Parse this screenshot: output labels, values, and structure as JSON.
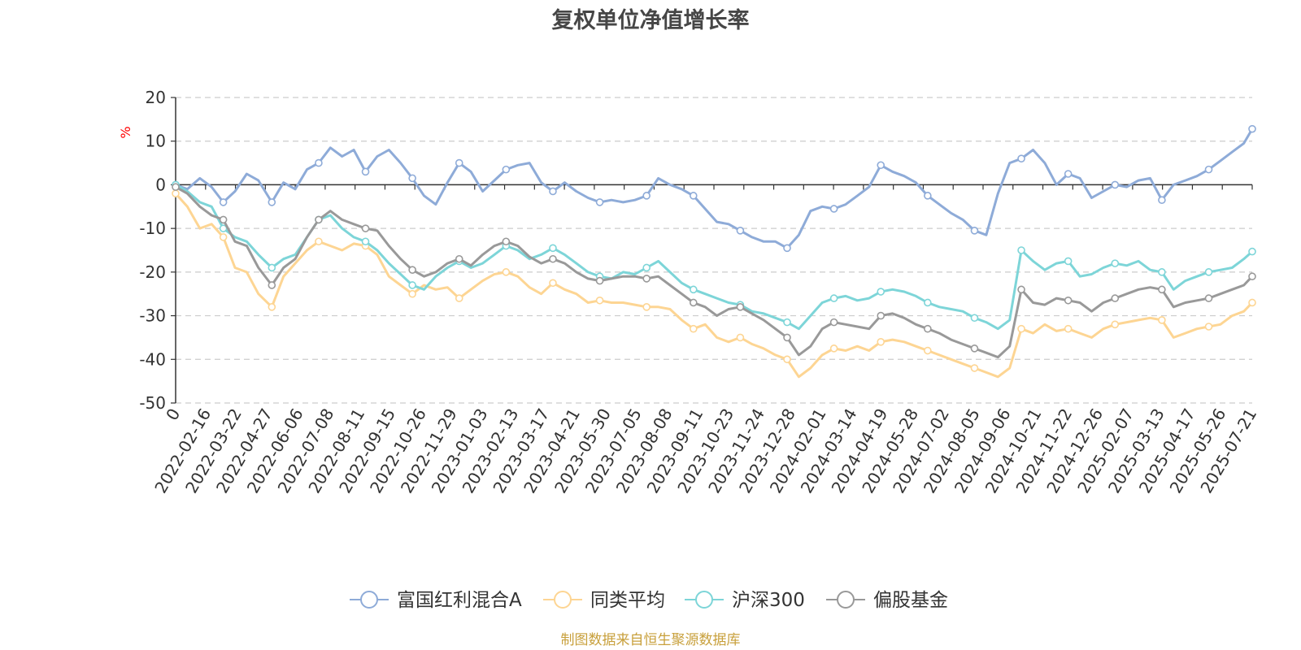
{
  "chart_data": {
    "type": "line",
    "title": "复权单位净值增长率",
    "ylabel": "%",
    "ylim": [
      -50,
      20
    ],
    "yticks": [
      20,
      10,
      0,
      -10,
      -20,
      -30,
      -40,
      -50
    ],
    "grid": true,
    "legend_position": "bottom-center",
    "source": "制图数据来自恒生聚源数据库",
    "x_start": "2022-01-11",
    "x_end": "2025-07-21",
    "x_ticks": [
      "0",
      "2022-02-16",
      "2022-03-22",
      "2022-04-27",
      "2022-06-06",
      "2022-07-08",
      "2022-08-11",
      "2022-09-15",
      "2022-10-26",
      "2022-11-29",
      "2023-01-03",
      "2023-02-13",
      "2023-03-17",
      "2023-04-21",
      "2023-05-30",
      "2023-07-05",
      "2023-08-08",
      "2023-09-11",
      "2023-10-23",
      "2023-11-24",
      "2023-12-28",
      "2024-02-01",
      "2024-03-14",
      "2024-04-19",
      "2024-05-28",
      "2024-07-02",
      "2024-08-05",
      "2024-09-06",
      "2024-10-21",
      "2024-11-22",
      "2024-12-26",
      "2025-02-07",
      "2025-03-13",
      "2025-04-17",
      "2025-05-26",
      "2025-07-21"
    ],
    "series": [
      {
        "name": "富国红利混合A",
        "color": "#8eabd8",
        "x": [
          "2022-01-11",
          "2022-01-25",
          "2022-02-09",
          "2022-02-23",
          "2022-03-09",
          "2022-03-23",
          "2022-04-06",
          "2022-04-20",
          "2022-05-06",
          "2022-05-20",
          "2022-06-03",
          "2022-06-17",
          "2022-07-01",
          "2022-07-15",
          "2022-07-29",
          "2022-08-12",
          "2022-08-26",
          "2022-09-09",
          "2022-09-23",
          "2022-10-07",
          "2022-10-21",
          "2022-11-04",
          "2022-11-18",
          "2022-12-02",
          "2022-12-16",
          "2022-12-30",
          "2023-01-13",
          "2023-01-27",
          "2023-02-10",
          "2023-02-24",
          "2023-03-10",
          "2023-03-24",
          "2023-04-07",
          "2023-04-21",
          "2023-05-05",
          "2023-05-19",
          "2023-06-02",
          "2023-06-16",
          "2023-06-30",
          "2023-07-14",
          "2023-07-28",
          "2023-08-11",
          "2023-08-25",
          "2023-09-08",
          "2023-09-22",
          "2023-10-06",
          "2023-10-20",
          "2023-11-03",
          "2023-11-17",
          "2023-12-01",
          "2023-12-15",
          "2023-12-29",
          "2024-01-12",
          "2024-01-26",
          "2024-02-09",
          "2024-02-23",
          "2024-03-08",
          "2024-03-22",
          "2024-04-05",
          "2024-04-19",
          "2024-05-03",
          "2024-05-17",
          "2024-05-31",
          "2024-06-14",
          "2024-06-28",
          "2024-07-12",
          "2024-07-26",
          "2024-08-09",
          "2024-08-23",
          "2024-09-06",
          "2024-09-20",
          "2024-10-04",
          "2024-10-18",
          "2024-11-01",
          "2024-11-15",
          "2024-11-29",
          "2024-12-13",
          "2024-12-27",
          "2025-01-10",
          "2025-01-24",
          "2025-02-07",
          "2025-02-21",
          "2025-03-07",
          "2025-03-21",
          "2025-04-04",
          "2025-04-18",
          "2025-05-02",
          "2025-05-16",
          "2025-05-30",
          "2025-06-13",
          "2025-06-27",
          "2025-07-11",
          "2025-07-21"
        ],
        "values": [
          0.0,
          -1.0,
          1.5,
          -0.5,
          -4.0,
          -1.5,
          2.5,
          1.0,
          -4.0,
          0.5,
          -1.0,
          3.5,
          5.0,
          8.5,
          6.5,
          8.0,
          3.0,
          6.5,
          8.0,
          5.0,
          1.5,
          -2.5,
          -4.5,
          0.5,
          5.0,
          3.0,
          -1.5,
          1.0,
          3.5,
          4.5,
          5.0,
          0.5,
          -1.5,
          0.5,
          -1.5,
          -3.0,
          -4.0,
          -3.5,
          -4.0,
          -3.5,
          -2.5,
          1.5,
          0.0,
          -1.0,
          -2.5,
          -5.5,
          -8.5,
          -9.0,
          -10.5,
          -12.0,
          -13.0,
          -13.0,
          -14.5,
          -11.5,
          -6.0,
          -5.0,
          -5.5,
          -4.5,
          -2.5,
          -0.5,
          4.5,
          3.0,
          2.0,
          0.5,
          -2.5,
          -4.5,
          -6.5,
          -8.0,
          -10.5,
          -11.5,
          -2.0,
          5.0,
          6.0,
          8.0,
          5.0,
          0.0,
          2.5,
          1.5,
          -3.0,
          -1.5,
          0.0,
          -0.5,
          1.0,
          1.5,
          -3.5,
          0.0,
          1.0,
          2.0,
          3.5,
          5.5,
          7.5,
          9.5,
          12.8
        ]
      },
      {
        "name": "同类平均",
        "color": "#fdd593",
        "x": [
          "2022-01-11",
          "2022-01-25",
          "2022-02-09",
          "2022-02-23",
          "2022-03-09",
          "2022-03-23",
          "2022-04-06",
          "2022-04-20",
          "2022-05-06",
          "2022-05-20",
          "2022-06-03",
          "2022-06-17",
          "2022-07-01",
          "2022-07-15",
          "2022-07-29",
          "2022-08-12",
          "2022-08-26",
          "2022-09-09",
          "2022-09-23",
          "2022-10-07",
          "2022-10-21",
          "2022-11-04",
          "2022-11-18",
          "2022-12-02",
          "2022-12-16",
          "2022-12-30",
          "2023-01-13",
          "2023-01-27",
          "2023-02-10",
          "2023-02-24",
          "2023-03-10",
          "2023-03-24",
          "2023-04-07",
          "2023-04-21",
          "2023-05-05",
          "2023-05-19",
          "2023-06-02",
          "2023-06-16",
          "2023-06-30",
          "2023-07-14",
          "2023-07-28",
          "2023-08-11",
          "2023-08-25",
          "2023-09-08",
          "2023-09-22",
          "2023-10-06",
          "2023-10-20",
          "2023-11-03",
          "2023-11-17",
          "2023-12-01",
          "2023-12-15",
          "2023-12-29",
          "2024-01-12",
          "2024-01-26",
          "2024-02-09",
          "2024-02-23",
          "2024-03-08",
          "2024-03-22",
          "2024-04-05",
          "2024-04-19",
          "2024-05-03",
          "2024-05-17",
          "2024-05-31",
          "2024-06-14",
          "2024-06-28",
          "2024-07-12",
          "2024-07-26",
          "2024-08-09",
          "2024-08-23",
          "2024-09-06",
          "2024-09-20",
          "2024-10-04",
          "2024-10-18",
          "2024-11-01",
          "2024-11-15",
          "2024-11-29",
          "2024-12-13",
          "2024-12-27",
          "2025-01-10",
          "2025-01-24",
          "2025-02-07",
          "2025-02-21",
          "2025-03-07",
          "2025-03-21",
          "2025-04-04",
          "2025-04-18",
          "2025-05-02",
          "2025-05-16",
          "2025-05-30",
          "2025-06-13",
          "2025-06-27",
          "2025-07-11",
          "2025-07-21"
        ],
        "values": [
          -2.0,
          -5.0,
          -10.0,
          -9.0,
          -12.0,
          -19.0,
          -20.0,
          -25.0,
          -28.0,
          -21.0,
          -18.0,
          -15.0,
          -13.0,
          -14.0,
          -15.0,
          -13.5,
          -14.0,
          -16.0,
          -21.0,
          -23.0,
          -25.0,
          -23.0,
          -24.0,
          -23.5,
          -26.0,
          -24.0,
          -22.0,
          -20.5,
          -20.0,
          -21.0,
          -23.5,
          -25.0,
          -22.5,
          -24.0,
          -25.0,
          -27.0,
          -26.5,
          -27.0,
          -27.0,
          -27.5,
          -28.0,
          -28.0,
          -28.5,
          -31.0,
          -33.0,
          -32.0,
          -35.0,
          -36.0,
          -35.0,
          -36.5,
          -37.5,
          -39.0,
          -40.0,
          -44.0,
          -42.0,
          -39.0,
          -37.5,
          -38.0,
          -37.0,
          -38.0,
          -36.0,
          -35.5,
          -36.0,
          -37.0,
          -38.0,
          -39.0,
          -40.0,
          -41.0,
          -42.0,
          -43.0,
          -44.0,
          -42.0,
          -33.0,
          -34.0,
          -32.0,
          -33.5,
          -33.0,
          -34.0,
          -35.0,
          -33.0,
          -32.0,
          -31.5,
          -31.0,
          -30.5,
          -31.0,
          -35.0,
          -34.0,
          -33.0,
          -32.5,
          -32.0,
          -30.0,
          -29.0,
          -27.0
        ]
      },
      {
        "name": "沪深300",
        "color": "#7dd5d8",
        "x": [
          "2022-01-11",
          "2022-01-25",
          "2022-02-09",
          "2022-02-23",
          "2022-03-09",
          "2022-03-23",
          "2022-04-06",
          "2022-04-20",
          "2022-05-06",
          "2022-05-20",
          "2022-06-03",
          "2022-06-17",
          "2022-07-01",
          "2022-07-15",
          "2022-07-29",
          "2022-08-12",
          "2022-08-26",
          "2022-09-09",
          "2022-09-23",
          "2022-10-07",
          "2022-10-21",
          "2022-11-04",
          "2022-11-18",
          "2022-12-02",
          "2022-12-16",
          "2022-12-30",
          "2023-01-13",
          "2023-01-27",
          "2023-02-10",
          "2023-02-24",
          "2023-03-10",
          "2023-03-24",
          "2023-04-07",
          "2023-04-21",
          "2023-05-05",
          "2023-05-19",
          "2023-06-02",
          "2023-06-16",
          "2023-06-30",
          "2023-07-14",
          "2023-07-28",
          "2023-08-11",
          "2023-08-25",
          "2023-09-08",
          "2023-09-22",
          "2023-10-06",
          "2023-10-20",
          "2023-11-03",
          "2023-11-17",
          "2023-12-01",
          "2023-12-15",
          "2023-12-29",
          "2024-01-12",
          "2024-01-26",
          "2024-02-09",
          "2024-02-23",
          "2024-03-08",
          "2024-03-22",
          "2024-04-05",
          "2024-04-19",
          "2024-05-03",
          "2024-05-17",
          "2024-05-31",
          "2024-06-14",
          "2024-06-28",
          "2024-07-12",
          "2024-07-26",
          "2024-08-09",
          "2024-08-23",
          "2024-09-06",
          "2024-09-20",
          "2024-10-04",
          "2024-10-18",
          "2024-11-01",
          "2024-11-15",
          "2024-11-29",
          "2024-12-13",
          "2024-12-27",
          "2025-01-10",
          "2025-01-24",
          "2025-02-07",
          "2025-02-21",
          "2025-03-07",
          "2025-03-21",
          "2025-04-04",
          "2025-04-18",
          "2025-05-02",
          "2025-05-16",
          "2025-05-30",
          "2025-06-13",
          "2025-06-27",
          "2025-07-11",
          "2025-07-21"
        ],
        "values": [
          0.0,
          -1.5,
          -4.0,
          -5.0,
          -10.0,
          -12.0,
          -13.0,
          -16.0,
          -19.0,
          -17.0,
          -16.0,
          -12.0,
          -8.0,
          -7.0,
          -10.0,
          -12.0,
          -13.0,
          -15.0,
          -18.0,
          -20.5,
          -23.0,
          -24.0,
          -21.0,
          -19.0,
          -17.5,
          -19.0,
          -18.0,
          -16.0,
          -14.0,
          -15.0,
          -17.0,
          -16.0,
          -14.5,
          -16.0,
          -18.0,
          -20.0,
          -21.0,
          -21.5,
          -20.0,
          -20.5,
          -19.0,
          -17.5,
          -20.0,
          -22.5,
          -24.0,
          -25.0,
          -26.0,
          -27.0,
          -27.5,
          -29.0,
          -29.5,
          -30.5,
          -31.5,
          -33.0,
          -30.0,
          -27.0,
          -26.0,
          -25.5,
          -26.5,
          -26.0,
          -24.5,
          -24.0,
          -24.5,
          -25.5,
          -27.0,
          -28.0,
          -28.5,
          -29.0,
          -30.5,
          -31.5,
          -33.0,
          -31.0,
          -15.0,
          -17.5,
          -19.5,
          -18.0,
          -17.5,
          -21.0,
          -20.5,
          -19.0,
          -18.0,
          -18.5,
          -17.5,
          -19.5,
          -20.0,
          -24.0,
          -22.0,
          -21.0,
          -20.0,
          -19.5,
          -19.0,
          -17.0,
          -15.3
        ]
      },
      {
        "name": "偏股基金",
        "color": "#999999",
        "x": [
          "2022-01-11",
          "2022-01-25",
          "2022-02-09",
          "2022-02-23",
          "2022-03-09",
          "2022-03-23",
          "2022-04-06",
          "2022-04-20",
          "2022-05-06",
          "2022-05-20",
          "2022-06-03",
          "2022-06-17",
          "2022-07-01",
          "2022-07-15",
          "2022-07-29",
          "2022-08-12",
          "2022-08-26",
          "2022-09-09",
          "2022-09-23",
          "2022-10-07",
          "2022-10-21",
          "2022-11-04",
          "2022-11-18",
          "2022-12-02",
          "2022-12-16",
          "2022-12-30",
          "2023-01-13",
          "2023-01-27",
          "2023-02-10",
          "2023-02-24",
          "2023-03-10",
          "2023-03-24",
          "2023-04-07",
          "2023-04-21",
          "2023-05-05",
          "2023-05-19",
          "2023-06-02",
          "2023-06-16",
          "2023-06-30",
          "2023-07-14",
          "2023-07-28",
          "2023-08-11",
          "2023-08-25",
          "2023-09-08",
          "2023-09-22",
          "2023-10-06",
          "2023-10-20",
          "2023-11-03",
          "2023-11-17",
          "2023-12-01",
          "2023-12-15",
          "2023-12-29",
          "2024-01-12",
          "2024-01-26",
          "2024-02-09",
          "2024-02-23",
          "2024-03-08",
          "2024-03-22",
          "2024-04-05",
          "2024-04-19",
          "2024-05-03",
          "2024-05-17",
          "2024-05-31",
          "2024-06-14",
          "2024-06-28",
          "2024-07-12",
          "2024-07-26",
          "2024-08-09",
          "2024-08-23",
          "2024-09-06",
          "2024-09-20",
          "2024-10-04",
          "2024-10-18",
          "2024-11-01",
          "2024-11-15",
          "2024-11-29",
          "2024-12-13",
          "2024-12-27",
          "2025-01-10",
          "2025-01-24",
          "2025-02-07",
          "2025-02-21",
          "2025-03-07",
          "2025-03-21",
          "2025-04-04",
          "2025-04-18",
          "2025-05-02",
          "2025-05-16",
          "2025-05-30",
          "2025-06-13",
          "2025-06-27",
          "2025-07-11",
          "2025-07-21"
        ],
        "values": [
          -0.5,
          -2.0,
          -5.0,
          -7.0,
          -8.0,
          -13.0,
          -14.0,
          -19.0,
          -23.0,
          -19.0,
          -17.0,
          -12.0,
          -8.0,
          -6.0,
          -8.0,
          -9.0,
          -10.0,
          -10.5,
          -14.0,
          -17.0,
          -19.5,
          -21.0,
          -20.0,
          -18.0,
          -17.0,
          -18.5,
          -16.0,
          -14.0,
          -13.0,
          -14.0,
          -16.5,
          -18.0,
          -17.0,
          -18.0,
          -20.0,
          -21.5,
          -22.0,
          -21.5,
          -21.0,
          -21.0,
          -21.5,
          -21.0,
          -23.0,
          -25.0,
          -27.0,
          -28.0,
          -30.0,
          -28.5,
          -28.0,
          -29.5,
          -31.0,
          -33.0,
          -35.0,
          -39.0,
          -37.0,
          -33.0,
          -31.5,
          -32.0,
          -32.5,
          -33.0,
          -30.0,
          -29.5,
          -30.5,
          -32.0,
          -33.0,
          -34.0,
          -35.5,
          -36.5,
          -37.5,
          -38.5,
          -39.5,
          -37.0,
          -24.0,
          -27.0,
          -27.5,
          -26.0,
          -26.5,
          -27.0,
          -29.0,
          -27.0,
          -26.0,
          -25.0,
          -24.0,
          -23.5,
          -24.0,
          -28.0,
          -27.0,
          -26.5,
          -26.0,
          -25.0,
          -24.0,
          -23.0,
          -21.0
        ]
      }
    ]
  }
}
